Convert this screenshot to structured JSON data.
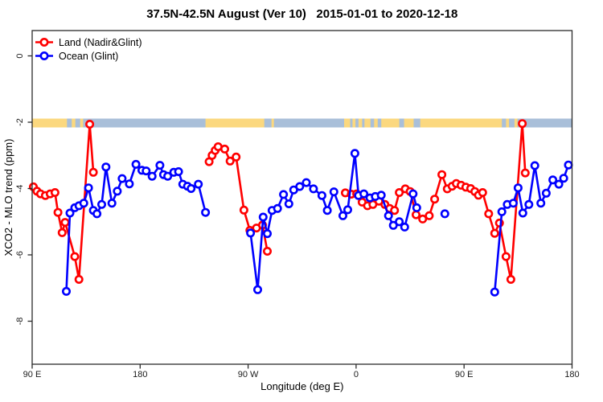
{
  "title": "37.5N-42.5N August (Ver 10)   2015-01-01 to 2020-12-18",
  "legend": {
    "position": "topleft",
    "items": [
      {
        "label": "Land (Nadir&Glint)",
        "color": "#FF0000"
      },
      {
        "label": "Ocean (Glint)",
        "color": "#0000FF"
      }
    ]
  },
  "chart_data": {
    "type": "line",
    "title": "37.5N-42.5N August (Ver 10)   2015-01-01 to 2020-12-18",
    "xlabel": "Longitude (deg E)",
    "ylabel": "XCO2 - MLO trend (ppm)",
    "xlim": [
      90,
      540
    ],
    "ylim": [
      -9.3,
      0.8
    ],
    "grid": false,
    "legend_position": "topleft",
    "x_ticks": [
      {
        "lon": 90,
        "label": "90 E"
      },
      {
        "lon": 180,
        "label": "180"
      },
      {
        "lon": 270,
        "label": "90 W"
      },
      {
        "lon": 360,
        "label": "0"
      },
      {
        "lon": 450,
        "label": "90 E"
      },
      {
        "lon": 540,
        "label": "180"
      }
    ],
    "y_ticks": [
      {
        "value": 0,
        "label": "0"
      },
      {
        "value": -2,
        "label": "-2"
      },
      {
        "value": -4,
        "label": "-4"
      },
      {
        "value": -6,
        "label": "-6"
      },
      {
        "value": -8,
        "label": "-8"
      }
    ],
    "series": [
      {
        "id": "land",
        "name": "Land (Nadir&Glint)",
        "color": "#FF0000",
        "marker": "open-circle",
        "segments": [
          [
            [
              91,
              -3.95
            ],
            [
              94,
              -4.08
            ],
            [
              97,
              -4.16
            ],
            [
              101,
              -4.21
            ],
            [
              105,
              -4.16
            ],
            [
              109,
              -4.12
            ],
            [
              111.5,
              -4.72
            ],
            [
              115,
              -5.33
            ],
            [
              117.5,
              -5.02
            ],
            [
              125.5,
              -6.05
            ],
            [
              129,
              -6.74
            ],
            [
              138,
              -2.06
            ],
            [
              141,
              -3.51
            ]
          ],
          [
            [
              237.5,
              -3.19
            ],
            [
              240,
              -3.0
            ],
            [
              242.5,
              -2.85
            ],
            [
              245,
              -2.74
            ],
            [
              250.5,
              -2.81
            ],
            [
              255,
              -3.17
            ],
            [
              260,
              -3.05
            ],
            [
              266.5,
              -4.65
            ],
            [
              271.5,
              -5.26
            ],
            [
              277,
              -5.19
            ],
            [
              282,
              -5.1
            ],
            [
              286,
              -5.89
            ]
          ],
          [
            [
              351,
              -4.13
            ],
            [
              356,
              -4.17
            ],
            [
              360.5,
              -4.16
            ],
            [
              365,
              -4.41
            ],
            [
              369.5,
              -4.52
            ],
            [
              374,
              -4.48
            ],
            [
              379,
              -4.38
            ],
            [
              384,
              -4.48
            ],
            [
              388,
              -4.6
            ],
            [
              392,
              -4.66
            ],
            [
              396,
              -4.12
            ],
            [
              401,
              -4.01
            ],
            [
              405,
              -4.09
            ],
            [
              410,
              -4.79
            ],
            [
              415.5,
              -4.92
            ],
            [
              421,
              -4.82
            ],
            [
              425.5,
              -4.32
            ],
            [
              431.5,
              -3.58
            ],
            [
              436,
              -4.01
            ],
            [
              440,
              -3.93
            ],
            [
              443.5,
              -3.85
            ],
            [
              447.5,
              -3.9
            ],
            [
              451.5,
              -3.96
            ],
            [
              455.5,
              -4.0
            ],
            [
              459,
              -4.09
            ],
            [
              462,
              -4.2
            ],
            [
              465.5,
              -4.12
            ],
            [
              470.5,
              -4.76
            ],
            [
              475.5,
              -5.35
            ],
            [
              479.5,
              -5.04
            ],
            [
              485,
              -6.05
            ],
            [
              489,
              -6.74
            ],
            [
              498.5,
              -2.04
            ],
            [
              501,
              -3.53
            ]
          ]
        ],
        "isolated_points": []
      },
      {
        "id": "ocean",
        "name": "Ocean (Glint)",
        "color": "#0000FF",
        "marker": "open-circle",
        "segments": [
          [
            [
              118.5,
              -7.1
            ],
            [
              121.5,
              -4.74
            ],
            [
              125.5,
              -4.58
            ],
            [
              129,
              -4.52
            ],
            [
              133,
              -4.44
            ],
            [
              137,
              -3.98
            ],
            [
              141,
              -4.66
            ],
            [
              144,
              -4.76
            ],
            [
              148,
              -4.48
            ],
            [
              151.5,
              -3.35
            ],
            [
              156.5,
              -4.44
            ],
            [
              161,
              -4.08
            ],
            [
              165,
              -3.7
            ],
            [
              171,
              -3.86
            ],
            [
              176.5,
              -3.27
            ],
            [
              181.5,
              -3.45
            ],
            [
              185,
              -3.47
            ],
            [
              190,
              -3.63
            ],
            [
              196.5,
              -3.3
            ],
            [
              199.5,
              -3.58
            ],
            [
              203,
              -3.63
            ],
            [
              208,
              -3.51
            ],
            [
              212,
              -3.49
            ],
            [
              215.5,
              -3.87
            ],
            [
              219.5,
              -3.93
            ],
            [
              222.5,
              -4.0
            ],
            [
              228.5,
              -3.87
            ],
            [
              234.5,
              -4.72
            ]
          ],
          [
            [
              272,
              -5.34
            ],
            [
              278,
              -7.05
            ],
            [
              282.5,
              -4.86
            ],
            [
              286,
              -5.36
            ],
            [
              290,
              -4.66
            ],
            [
              294.5,
              -4.6
            ],
            [
              299.5,
              -4.18
            ],
            [
              304,
              -4.46
            ],
            [
              308,
              -4.04
            ],
            [
              313,
              -3.94
            ],
            [
              318.5,
              -3.82
            ],
            [
              324.5,
              -4.01
            ],
            [
              331.5,
              -4.21
            ],
            [
              336,
              -4.66
            ],
            [
              341.5,
              -4.1
            ],
            [
              349,
              -4.82
            ],
            [
              353,
              -4.64
            ],
            [
              359,
              -2.94
            ],
            [
              362,
              -4.21
            ],
            [
              366.5,
              -4.16
            ],
            [
              371.5,
              -4.28
            ],
            [
              376,
              -4.24
            ],
            [
              381,
              -4.2
            ],
            [
              387,
              -4.82
            ],
            [
              391,
              -5.11
            ],
            [
              396,
              -5.0
            ],
            [
              400.5,
              -5.16
            ],
            [
              407.5,
              -4.16
            ],
            [
              410.5,
              -4.58
            ]
          ],
          [
            [
              475.5,
              -7.12
            ],
            [
              481.5,
              -4.7
            ],
            [
              486,
              -4.48
            ],
            [
              491,
              -4.44
            ],
            [
              495,
              -3.98
            ],
            [
              499,
              -4.74
            ],
            [
              504,
              -4.48
            ],
            [
              509,
              -3.31
            ],
            [
              514,
              -4.44
            ],
            [
              518.5,
              -4.14
            ],
            [
              524,
              -3.74
            ],
            [
              529,
              -3.87
            ],
            [
              533,
              -3.69
            ],
            [
              537,
              -3.29
            ]
          ]
        ],
        "isolated_points": [
          [
            434,
            -4.76
          ]
        ]
      }
    ],
    "land_ocean_strip": {
      "y_center_ppm": -2,
      "ocean_color": "#A9BFD9",
      "land_color": "#FBD87F",
      "land_segments_lon": [
        [
          90,
          119
        ],
        [
          123,
          126
        ],
        [
          130,
          132.5
        ],
        [
          234.5,
          283.5
        ],
        [
          289.5,
          291.5
        ],
        [
          350,
          355
        ],
        [
          357,
          359.5
        ],
        [
          362,
          365
        ],
        [
          367,
          372
        ],
        [
          375,
          378
        ],
        [
          381,
          396
        ],
        [
          400,
          408
        ],
        [
          413.5,
          481.5
        ],
        [
          485,
          487.5
        ],
        [
          492,
          494.5
        ]
      ]
    }
  }
}
